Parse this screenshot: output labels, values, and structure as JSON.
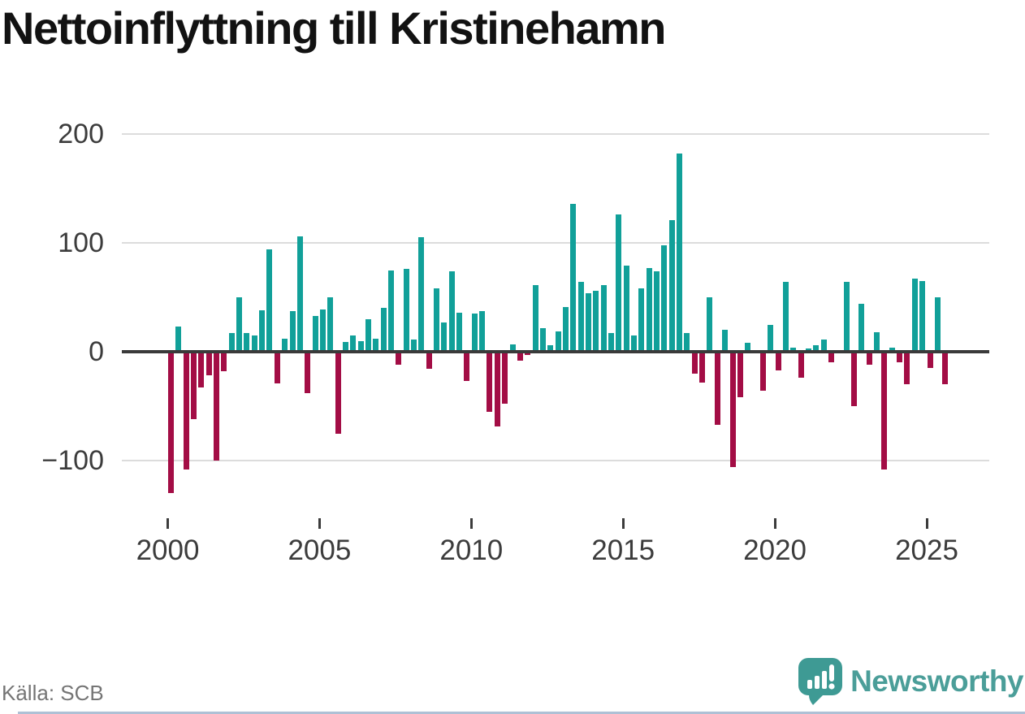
{
  "title": "Nettoinflyttning till Kristinehamn",
  "source": "Källa: SCB",
  "branding": {
    "name": "Newsworthy",
    "icon": "newsworthy-speech-bubble-chart-icon"
  },
  "colors": {
    "positive": "#11A099",
    "negative": "#A30D45",
    "grid": "#DCDCDC",
    "zero_line": "#3A3A3A",
    "axis_text": "#3C3C3C",
    "title_text": "#121212",
    "source_text": "#757575",
    "brand": "#4B9E99"
  },
  "chart_data": {
    "type": "bar",
    "title": "Nettoinflyttning till Kristinehamn",
    "xlabel": "",
    "ylabel": "",
    "grid": "horizontal",
    "legend": false,
    "ylim": [
      -145,
      215
    ],
    "x": [
      "2000Q1",
      "2000Q2",
      "2000Q3",
      "2000Q4",
      "2001Q1",
      "2001Q2",
      "2001Q3",
      "2001Q4",
      "2002Q1",
      "2002Q2",
      "2002Q3",
      "2002Q4",
      "2003Q1",
      "2003Q2",
      "2003Q3",
      "2003Q4",
      "2004Q1",
      "2004Q2",
      "2004Q3",
      "2004Q4",
      "2005Q1",
      "2005Q2",
      "2005Q3",
      "2005Q4",
      "2006Q1",
      "2006Q2",
      "2006Q3",
      "2006Q4",
      "2007Q1",
      "2007Q2",
      "2007Q3",
      "2007Q4",
      "2008Q1",
      "2008Q2",
      "2008Q3",
      "2008Q4",
      "2009Q1",
      "2009Q2",
      "2009Q3",
      "2009Q4",
      "2010Q1",
      "2010Q2",
      "2010Q3",
      "2010Q4",
      "2011Q1",
      "2011Q2",
      "2011Q3",
      "2011Q4",
      "2012Q1",
      "2012Q2",
      "2012Q3",
      "2012Q4",
      "2013Q1",
      "2013Q2",
      "2013Q3",
      "2013Q4",
      "2014Q1",
      "2014Q2",
      "2014Q3",
      "2014Q4",
      "2015Q1",
      "2015Q2",
      "2015Q3",
      "2015Q4",
      "2016Q1",
      "2016Q2",
      "2016Q3",
      "2016Q4",
      "2017Q1",
      "2017Q2",
      "2017Q3",
      "2017Q4",
      "2018Q1",
      "2018Q2",
      "2018Q3",
      "2018Q4",
      "2019Q1",
      "2019Q2",
      "2019Q3",
      "2019Q4",
      "2020Q1",
      "2020Q2",
      "2020Q3",
      "2020Q4",
      "2021Q1",
      "2021Q2",
      "2021Q3",
      "2021Q4",
      "2022Q1",
      "2022Q2",
      "2022Q3",
      "2022Q4",
      "2023Q1",
      "2023Q2",
      "2023Q3",
      "2023Q4",
      "2024Q1",
      "2024Q2",
      "2024Q3",
      "2024Q4",
      "2025Q1",
      "2025Q2",
      "2025Q3"
    ],
    "values": [
      -130,
      23,
      -108,
      -62,
      -33,
      -22,
      -100,
      -18,
      17,
      50,
      17,
      15,
      38,
      94,
      -29,
      12,
      37,
      106,
      -38,
      33,
      39,
      50,
      -75,
      9,
      15,
      10,
      30,
      12,
      40,
      75,
      -12,
      76,
      11,
      105,
      -16,
      58,
      27,
      74,
      36,
      -27,
      35,
      37,
      -55,
      -69,
      -48,
      7,
      -8,
      -3,
      61,
      22,
      6,
      19,
      41,
      136,
      64,
      54,
      56,
      61,
      17,
      126,
      79,
      15,
      58,
      77,
      74,
      98,
      121,
      182,
      17,
      -20,
      -28,
      50,
      -67,
      20,
      -106,
      -42,
      8,
      0,
      -36,
      25,
      -17,
      64,
      4,
      -24,
      3,
      6,
      11,
      -10,
      0,
      64,
      -50,
      44,
      -12,
      18,
      -108,
      4,
      -10,
      -30,
      67,
      65,
      -15,
      50,
      -30
    ],
    "yticks": [
      {
        "label": "200",
        "value": 200
      },
      {
        "label": "100",
        "value": 100
      },
      {
        "label": "0",
        "value": 0
      },
      {
        "label": "−100",
        "value": -100
      }
    ],
    "xticks": [
      {
        "label": "2000",
        "index": 0
      },
      {
        "label": "2005",
        "index": 20
      },
      {
        "label": "2010",
        "index": 40
      },
      {
        "label": "2015",
        "index": 60
      },
      {
        "label": "2020",
        "index": 80
      },
      {
        "label": "2025",
        "index": 100
      }
    ]
  }
}
